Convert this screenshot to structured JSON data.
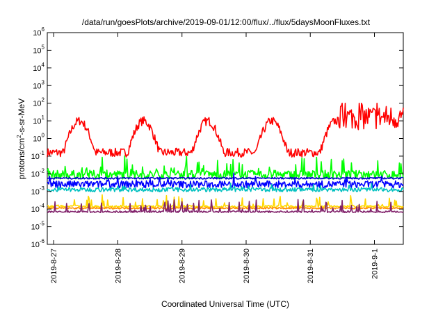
{
  "chart_data": {
    "type": "line",
    "title": "/data/run/goesPlots/archive/2019-09-01/12:00/flux/../flux/5daysMoonFluxes.txt",
    "xlabel": "Coordinated Universal Time (UTC)",
    "ylabel": {
      "prefix": "protons/cm",
      "sup": "2",
      "suffix": "-s-sr-MeV"
    },
    "y_scale": "log",
    "ylim_exp": [
      -6,
      6
    ],
    "y_tick_base": "10",
    "y_tick_exponents": [
      "-6",
      "-5",
      "-4",
      "-3",
      "-2",
      "-1",
      "0",
      "1",
      "2",
      "3",
      "4",
      "5",
      "6"
    ],
    "x_ticks": [
      "2019-8-27",
      "2019-8-28",
      "2019-8-29",
      "2019-8-30",
      "2019-8-31",
      "2019-9-1"
    ],
    "x_range_days": [
      0,
      5.55
    ],
    "grid": false,
    "legend": "none",
    "series": [
      {
        "color": "#ff0000",
        "kind": "wave",
        "base": -0.2,
        "amp": 1.8,
        "phase": 0.25,
        "noise": 0.25,
        "tail": {
          "from": 4.55,
          "base": 1.2,
          "spike_to": 2.0
        }
      },
      {
        "color": "#00ff00",
        "kind": "spiky",
        "base": -2.05,
        "spike": 0.9,
        "noise": 0.25
      },
      {
        "color": "#0000ff",
        "kind": "noisy",
        "base": -2.6,
        "spike": 0.5,
        "noise": 0.2
      },
      {
        "color": "#0000cc",
        "kind": "flat",
        "base": -2.25,
        "noise": 0.05
      },
      {
        "color": "#00c0c0",
        "kind": "noisy",
        "base": -2.9,
        "spike": 0.3,
        "noise": 0.12
      },
      {
        "color": "#ffd700",
        "kind": "spiky",
        "base": -3.85,
        "spike": 0.6,
        "noise": 0.06
      },
      {
        "color": "#ff8c00",
        "kind": "flat",
        "base": -3.95,
        "noise": 0.04
      },
      {
        "color": "#80206a",
        "kind": "spiky",
        "base": -4.15,
        "spike": 0.7,
        "noise": 0.05
      }
    ]
  }
}
